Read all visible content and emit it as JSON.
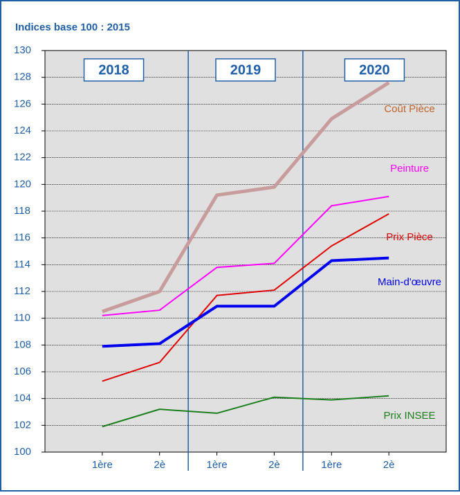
{
  "chart_data": {
    "type": "line",
    "title": "Indices base 100 : 2015",
    "years": [
      "2018",
      "2019",
      "2020"
    ],
    "categories": [
      "1ère",
      "2è",
      "1ère",
      "2è",
      "1ère",
      "2è"
    ],
    "series": [
      {
        "name": "Coût Pièce",
        "color": "#c89c9c",
        "label_color": "#c0642a",
        "width": 5,
        "values": [
          110.5,
          112,
          119.2,
          119.8,
          124.9,
          127.6
        ]
      },
      {
        "name": "Peinture",
        "color": "#ff00ff",
        "label_color": "#ff00ff",
        "width": 2,
        "values": [
          110.2,
          110.6,
          113.8,
          114.1,
          118.4,
          119.1
        ]
      },
      {
        "name": "Prix Pièce",
        "color": "#e00000",
        "label_color": "#e00000",
        "width": 2,
        "values": [
          105.3,
          106.7,
          111.7,
          112.1,
          115.4,
          117.8
        ]
      },
      {
        "name": "Main-d'œuvre",
        "color": "#0000ee",
        "label_color": "#0000ee",
        "width": 4,
        "values": [
          107.9,
          108.1,
          110.9,
          110.9,
          114.3,
          114.5
        ]
      },
      {
        "name": "Prix INSEE",
        "color": "#1a7f1a",
        "label_color": "#1a7f1a",
        "width": 2,
        "values": [
          101.9,
          103.2,
          102.9,
          104.1,
          103.9,
          104.2
        ]
      }
    ],
    "ylim": [
      100,
      130
    ],
    "yticks": [
      100,
      102,
      104,
      106,
      108,
      110,
      112,
      114,
      116,
      118,
      120,
      122,
      124,
      126,
      128,
      130
    ],
    "grid": true
  }
}
